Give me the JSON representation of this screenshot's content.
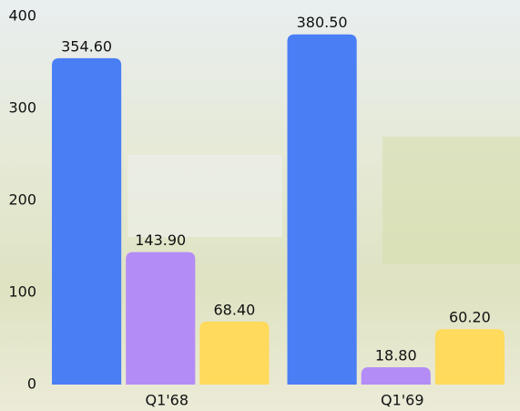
{
  "chart_data": {
    "type": "bar",
    "categories": [
      "Q1'68",
      "Q1'69"
    ],
    "series": [
      {
        "color": "#4a7ef5",
        "values": [
          354.6,
          380.5
        ],
        "value_labels": [
          "354.60",
          "380.50"
        ]
      },
      {
        "color": "#b48cf6",
        "values": [
          143.9,
          18.8
        ],
        "value_labels": [
          "143.90",
          "18.80"
        ]
      },
      {
        "color": "#ffda5c",
        "values": [
          68.4,
          60.2
        ],
        "value_labels": [
          "68.40",
          "60.20"
        ]
      }
    ],
    "ylim": [
      0,
      400
    ],
    "yticks": [
      0,
      100,
      200,
      300,
      400
    ],
    "grid": false
  }
}
